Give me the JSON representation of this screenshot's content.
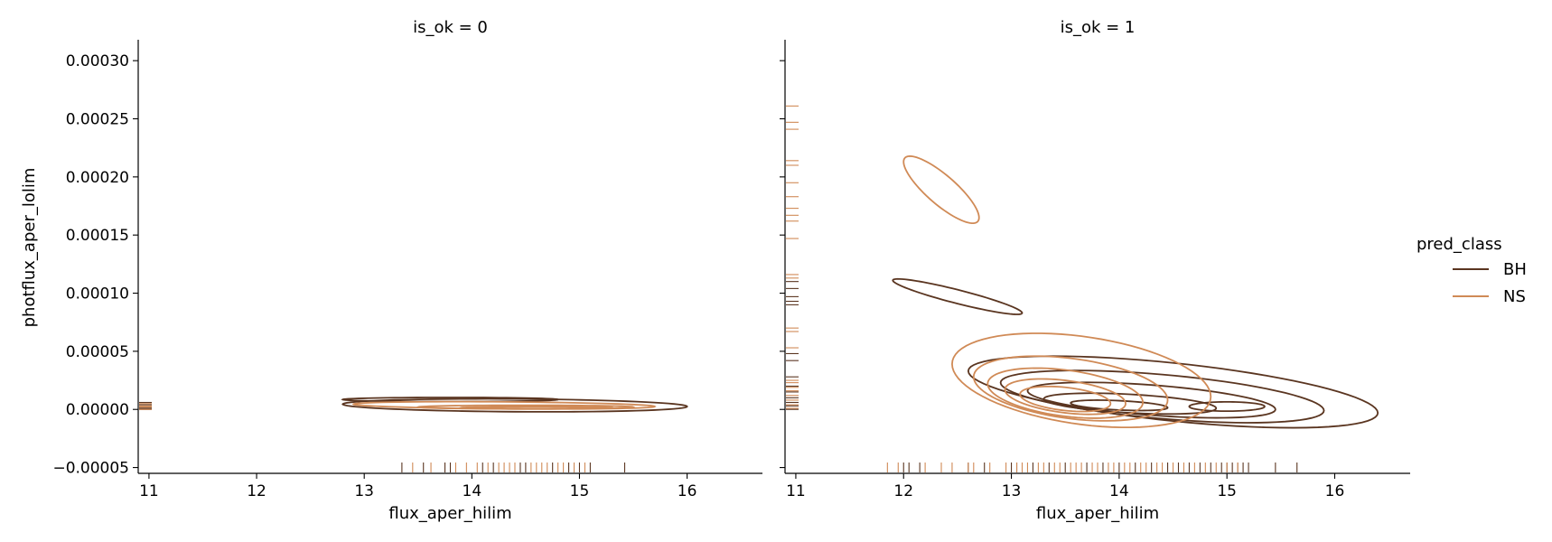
{
  "chart_data": {
    "type": "kde-contour-facet",
    "xlabel": "flux_aper_hilim",
    "ylabel": "photflux_aper_lolim",
    "xlim": [
      10.9,
      16.7
    ],
    "ylim": [
      -5.5e-05,
      0.000318
    ],
    "x_ticks": [
      11,
      12,
      13,
      14,
      15,
      16
    ],
    "y_ticks": [
      -5e-05,
      0.0,
      5e-05,
      0.0001,
      0.00015,
      0.0002,
      0.00025,
      0.0003
    ],
    "y_tick_labels": [
      "−0.00005",
      "0.00000",
      "0.00005",
      "0.00010",
      "0.00015",
      "0.00020",
      "0.00025",
      "0.00030"
    ],
    "legend": {
      "title": "pred_class",
      "placement": "right",
      "entries": [
        {
          "label": "BH",
          "color": "#5a3520"
        },
        {
          "label": "NS",
          "color": "#d08a56"
        }
      ]
    },
    "facets": [
      {
        "title": "is_ok = 0",
        "series": [
          {
            "name": "BH",
            "color": "#5a3520",
            "contours": [
              {
                "cx": 14.4,
                "cy": 3.5e-06,
                "rx": 1.6,
                "ry": 5.5e-06,
                "tilt": -1e-06
              },
              {
                "cx": 13.8,
                "cy": 8.5e-06,
                "rx": 1.0,
                "ry": 1.8e-06,
                "tilt": 0.0
              }
            ],
            "rug_x": [
              13.35,
              13.55,
              13.75,
              13.8,
              14.1,
              14.2,
              14.45,
              14.5,
              14.75,
              14.9,
              15.0,
              15.1,
              15.42
            ],
            "rug_y": [
              0.0,
              1e-06,
              2e-06,
              4e-06,
              6e-06
            ]
          },
          {
            "name": "NS",
            "color": "#d08a56",
            "contours": [
              {
                "cx": 14.3,
                "cy": 3.5e-06,
                "rx": 1.4,
                "ry": 3e-06,
                "tilt": -1e-06
              },
              {
                "cx": 14.5,
                "cy": 2e-06,
                "rx": 1.0,
                "ry": 1.6e-06,
                "tilt": 0.0
              },
              {
                "cx": 14.6,
                "cy": 1.5e-06,
                "rx": 0.7,
                "ry": 8e-07,
                "tilt": 0.0
              }
            ],
            "rug_x": [
              13.45,
              13.62,
              13.85,
              13.95,
              14.05,
              14.15,
              14.25,
              14.3,
              14.35,
              14.4,
              14.55,
              14.6,
              14.65,
              14.7,
              14.8,
              14.85,
              14.95,
              15.05
            ],
            "rug_y": [
              0.0,
              2e-06,
              3e-06,
              5e-06
            ]
          }
        ]
      },
      {
        "title": "is_ok = 1",
        "series": [
          {
            "name": "BH",
            "color": "#5a3520",
            "contours": [
              {
                "cx": 14.5,
                "cy": 1.5e-05,
                "rx": 1.9,
                "ry": 2.5e-05,
                "tilt": -1.8e-05
              },
              {
                "cx": 14.4,
                "cy": 1.1e-05,
                "rx": 1.5,
                "ry": 1.9e-05,
                "tilt": -1.2e-05
              },
              {
                "cx": 14.3,
                "cy": 8e-06,
                "rx": 1.15,
                "ry": 1.3e-05,
                "tilt": -8e-06
              },
              {
                "cx": 14.1,
                "cy": 5e-06,
                "rx": 0.8,
                "ry": 8e-06,
                "tilt": -4e-06
              },
              {
                "cx": 14.0,
                "cy": 3.5e-06,
                "rx": 0.45,
                "ry": 4e-06,
                "tilt": -2e-06
              },
              {
                "cx": 15.0,
                "cy": 2.5e-06,
                "rx": 0.35,
                "ry": 4e-06,
                "tilt": 0.0
              },
              {
                "cx": 12.5,
                "cy": 9.7e-05,
                "rx": 0.6,
                "ry": 6e-06,
                "tilt": -1.4e-05
              }
            ],
            "rug_x": [
              12.0,
              12.05,
              12.15,
              12.6,
              12.75,
              13.0,
              13.05,
              13.2,
              13.35,
              13.5,
              13.7,
              13.85,
              14.0,
              14.15,
              14.3,
              14.45,
              14.55,
              14.65,
              14.75,
              14.85,
              14.95,
              15.0,
              15.05,
              15.1,
              15.15,
              15.2,
              15.45,
              15.65
            ],
            "rug_y": [
              0.0,
              3e-06,
              6e-06,
              1e-05,
              1.5e-05,
              2e-05,
              2.8e-05,
              4.2e-05,
              4.8e-05,
              9e-05,
              9.3e-05,
              9.7e-05,
              0.000104,
              0.00011
            ]
          },
          {
            "name": "NS",
            "color": "#d08a56",
            "contours": [
              {
                "cx": 13.65,
                "cy": 2.5e-05,
                "rx": 1.2,
                "ry": 3.8e-05,
                "tilt": -1.4e-05
              },
              {
                "cx": 13.55,
                "cy": 1.8e-05,
                "rx": 0.9,
                "ry": 2.6e-05,
                "tilt": -1e-05
              },
              {
                "cx": 13.5,
                "cy": 1.4e-05,
                "rx": 0.72,
                "ry": 2e-05,
                "tilt": -8e-06
              },
              {
                "cx": 13.5,
                "cy": 1.1e-05,
                "rx": 0.56,
                "ry": 1.4e-05,
                "tilt": -6e-06
              },
              {
                "cx": 13.5,
                "cy": 9e-06,
                "rx": 0.42,
                "ry": 1e-05,
                "tilt": -4e-06
              },
              {
                "cx": 12.35,
                "cy": 0.000189,
                "rx": 0.35,
                "ry": 1.6e-05,
                "tilt": -2.4e-05
              }
            ],
            "rug_x": [
              11.85,
              11.95,
              12.2,
              12.35,
              12.45,
              12.6,
              12.65,
              12.8,
              12.95,
              13.05,
              13.1,
              13.15,
              13.25,
              13.3,
              13.4,
              13.45,
              13.55,
              13.6,
              13.65,
              13.75,
              13.8,
              13.9,
              13.95,
              14.05,
              14.1,
              14.2,
              14.25,
              14.35,
              14.4,
              14.5,
              14.6,
              14.7,
              14.8,
              14.9,
              15.0,
              15.1
            ],
            "rug_y": [
              1e-06,
              4e-06,
              8e-06,
              1.2e-05,
              1.6e-05,
              1.9e-05,
              2.3e-05,
              2.5e-05,
              5.3e-05,
              6.7e-05,
              7e-05,
              0.000113,
              0.000116,
              0.000147,
              0.000162,
              0.000167,
              0.000173,
              0.000183,
              0.000195,
              0.00021,
              0.000214,
              0.000241,
              0.000247,
              0.000261
            ]
          }
        ]
      }
    ]
  }
}
